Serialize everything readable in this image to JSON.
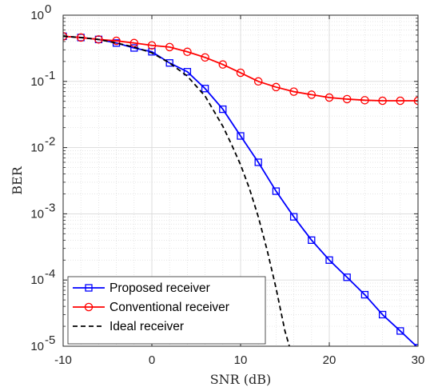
{
  "chart_data": {
    "type": "line",
    "title": "",
    "xlabel": "SNR (dB)",
    "ylabel": "BER",
    "xlim": [
      -10,
      30
    ],
    "ylim": [
      1e-05,
      1
    ],
    "yscale": "log",
    "grid": true,
    "minor_grid": true,
    "legend_position": "bottom-left",
    "x_ticks": [
      -10,
      0,
      10,
      20,
      30
    ],
    "x_tick_labels": [
      "-10",
      "0",
      "10",
      "20",
      "30"
    ],
    "y_tick_labels": [
      {
        "value": 1,
        "base": "10",
        "exp": "0"
      },
      {
        "value": 0.1,
        "base": "10",
        "exp": "-1"
      },
      {
        "value": 0.01,
        "base": "10",
        "exp": "-2"
      },
      {
        "value": 0.001,
        "base": "10",
        "exp": "-3"
      },
      {
        "value": 0.0001,
        "base": "10",
        "exp": "-4"
      },
      {
        "value": 1e-05,
        "base": "10",
        "exp": "-5"
      }
    ],
    "series": [
      {
        "name": "Proposed receiver",
        "color": "#0000ff",
        "marker": "square",
        "line": "solid",
        "x": [
          -10,
          -8,
          -6,
          -4,
          -2,
          0,
          2,
          4,
          6,
          8,
          10,
          12,
          14,
          16,
          18,
          20,
          22,
          24,
          26,
          28,
          30
        ],
        "y": [
          0.48,
          0.46,
          0.43,
          0.38,
          0.32,
          0.28,
          0.19,
          0.14,
          0.078,
          0.038,
          0.015,
          0.006,
          0.0022,
          0.0009,
          0.0004,
          0.0002,
          0.00011,
          6e-05,
          3e-05,
          1.7e-05,
          9.5e-06
        ]
      },
      {
        "name": "Conventional receiver",
        "color": "#ff0000",
        "marker": "circle",
        "line": "solid",
        "x": [
          -10,
          -8,
          -6,
          -4,
          -2,
          0,
          2,
          4,
          6,
          8,
          10,
          12,
          14,
          16,
          18,
          20,
          22,
          24,
          26,
          28,
          30
        ],
        "y": [
          0.48,
          0.46,
          0.43,
          0.41,
          0.38,
          0.35,
          0.33,
          0.28,
          0.23,
          0.18,
          0.135,
          0.1,
          0.082,
          0.07,
          0.063,
          0.057,
          0.054,
          0.052,
          0.051,
          0.051,
          0.051
        ]
      },
      {
        "name": "Ideal receiver",
        "color": "#000000",
        "marker": "none",
        "line": "dashed",
        "x": [
          -10,
          -8,
          -6,
          -4,
          -2,
          0,
          2,
          4,
          6,
          8,
          9,
          10,
          11,
          12,
          13,
          14,
          15,
          15.5
        ],
        "y": [
          0.48,
          0.46,
          0.43,
          0.38,
          0.33,
          0.27,
          0.19,
          0.12,
          0.06,
          0.021,
          0.011,
          0.0055,
          0.0024,
          0.0009,
          0.00028,
          7.5e-05,
          1.7e-05,
          1e-05
        ]
      }
    ]
  }
}
